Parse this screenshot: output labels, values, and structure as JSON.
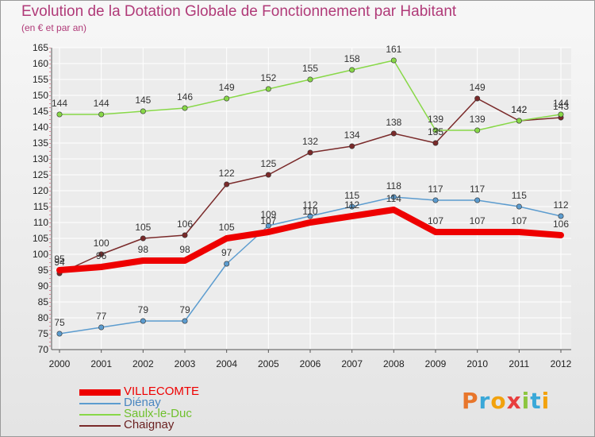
{
  "title": "Evolution de la Dotation Globale de Fonctionnement par Habitant",
  "subtitle": "(en € et par an)",
  "logo": {
    "text": "Proxiti",
    "colors": [
      "#e8762b",
      "#3aa8d8",
      "#f2a20d",
      "#e83e3e",
      "#8cc63f",
      "#3aa8d8",
      "#f2a20d"
    ]
  },
  "colors": {
    "title": "#b03a78",
    "axis": "#555555",
    "grid": "#ffffff"
  },
  "chart_data": {
    "type": "line",
    "title": "Evolution de la Dotation Globale de Fonctionnement par Habitant",
    "subtitle": "(en € et par an)",
    "xlabel": "",
    "ylabel": "",
    "ylim": [
      70,
      165
    ],
    "ystep": 5,
    "x": [
      "2000",
      "2001",
      "2002",
      "2003",
      "2004",
      "2005",
      "2006",
      "2007",
      "2008",
      "2009",
      "2010",
      "2011",
      "2012"
    ],
    "series": [
      {
        "name": "VILLECOMTE",
        "color": "#ee0000",
        "width": 8,
        "marker": false,
        "values": [
          95,
          96,
          98,
          98,
          105,
          107,
          110,
          112,
          114,
          107,
          107,
          107,
          106
        ]
      },
      {
        "name": "Diénay",
        "color": "#5c9ccf",
        "width": 1.5,
        "marker": true,
        "values": [
          75,
          77,
          79,
          79,
          97,
          109,
          112,
          115,
          118,
          117,
          117,
          115,
          112
        ]
      },
      {
        "name": "Saulx-le-Duc",
        "color": "#88d848",
        "width": 1.5,
        "marker": true,
        "values": [
          144,
          144,
          145,
          146,
          149,
          152,
          155,
          158,
          161,
          139,
          139,
          142,
          144
        ]
      },
      {
        "name": "Chaignay",
        "color": "#7a2a2a",
        "width": 1.5,
        "marker": true,
        "values": [
          94,
          100,
          105,
          106,
          122,
          125,
          132,
          134,
          138,
          135,
          149,
          142,
          143
        ]
      }
    ],
    "legend_position": "bottom-left"
  }
}
